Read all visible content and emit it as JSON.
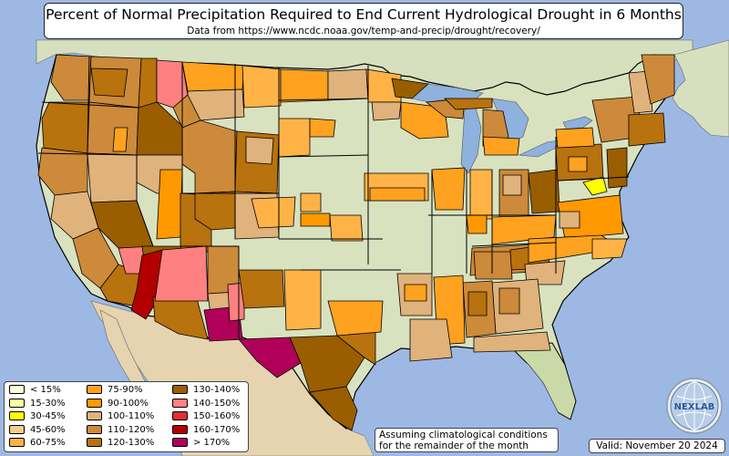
{
  "title": "Percent of Normal Precipitation Required to End Current Hydrological Drought in 6 Months",
  "subtitle": "Data from https://www.ncdc.noaa.gov/temp-and-precip/drought/recovery/",
  "assumption_text": [
    "Assuming climatological conditions",
    "for the remainder of the month"
  ],
  "valid_text": "Valid: November 20 2024",
  "logo": {
    "name": "nexlab-globe-logo",
    "text": "NEXLAB"
  },
  "colors": {
    "ocean": "#9db9e3",
    "land": "#d9e2bf",
    "land_green": "#c9d9a8",
    "mexico": "#e6d4b0",
    "canada": "#d6e0bf",
    "lakes": "#8fb1dd",
    "borders": "#000000"
  },
  "legend": [
    {
      "label": "< 15%",
      "color": "#ffffd9"
    },
    {
      "label": "15-30%",
      "color": "#ffff9e"
    },
    {
      "label": "30-45%",
      "color": "#ffff00"
    },
    {
      "label": "45-60%",
      "color": "#f7cc8a"
    },
    {
      "label": "60-75%",
      "color": "#ffb347"
    },
    {
      "label": "75-90%",
      "color": "#ffa21f"
    },
    {
      "label": "90-100%",
      "color": "#ff9900"
    },
    {
      "label": "100-110%",
      "color": "#e0b27c"
    },
    {
      "label": "110-120%",
      "color": "#cc8a3a"
    },
    {
      "label": "120-130%",
      "color": "#b8720e"
    },
    {
      "label": "130-140%",
      "color": "#9a5e00"
    },
    {
      "label": "140-150%",
      "color": "#ff8080"
    },
    {
      "label": "150-160%",
      "color": "#e03030"
    },
    {
      "label": "160-170%",
      "color": "#b20000"
    },
    {
      "label": "> 170%",
      "color": "#b0005a"
    }
  ]
}
